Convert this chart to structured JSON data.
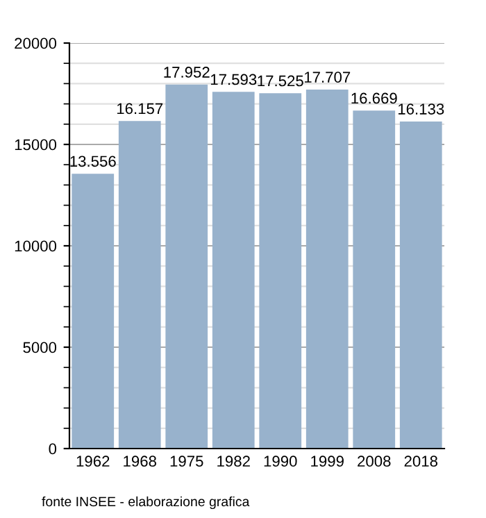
{
  "chart_data": {
    "type": "bar",
    "categories": [
      "1962",
      "1968",
      "1975",
      "1982",
      "1990",
      "1999",
      "2008",
      "2018"
    ],
    "values": [
      13556,
      16157,
      17952,
      17593,
      17525,
      17707,
      16669,
      16133
    ],
    "value_labels": [
      "13.556",
      "16.157",
      "17.952",
      "17.593",
      "17.525",
      "17.707",
      "16.669",
      "16.133"
    ],
    "color": "#98b2cc",
    "ylim": [
      0,
      20000
    ],
    "yticks": [
      0,
      5000,
      10000,
      15000,
      20000
    ],
    "grid": "y",
    "annotations": [
      "fonte INSEE - elaborazione grafica"
    ]
  }
}
